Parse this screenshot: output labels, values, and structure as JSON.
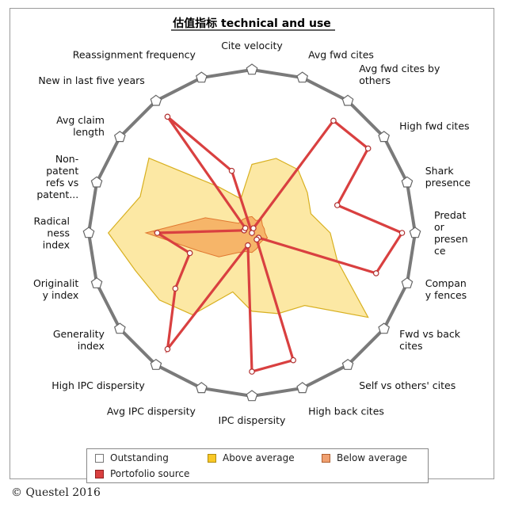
{
  "chart_data": {
    "type": "radar",
    "title": "估值指标 technical and use",
    "max": 100,
    "axes": [
      "Cite velocity",
      "Avg fwd cites",
      "Avg fwd cites by others",
      "High fwd cites",
      "Shark presence",
      "Predator presence",
      "Company fences",
      "Fwd vs back cites",
      "Self vs others' cites",
      "High back cites",
      "IPC dispersity",
      "Avg IPC dispersity",
      "High IPC dispersity",
      "Generality index",
      "Originality index",
      "Radical ness index",
      "Non-patent refs vs patent...",
      "Avg claim length",
      "New in last five years",
      "Reassignment frequency"
    ],
    "axis_label_lines": [
      [
        "Cite velocity"
      ],
      [
        "Avg fwd cites"
      ],
      [
        "Avg fwd cites by",
        "others"
      ],
      [
        "High fwd cites"
      ],
      [
        "Shark",
        "presence"
      ],
      [
        "Predat",
        "or",
        "presen",
        "ce"
      ],
      [
        "Compan",
        "y fences"
      ],
      [
        "Fwd vs back",
        "cites"
      ],
      [
        "Self vs others' cites"
      ],
      [
        "High back cites"
      ],
      [
        "IPC dispersity"
      ],
      [
        "Avg IPC dispersity"
      ],
      [
        "High IPC dispersity"
      ],
      [
        "Generality",
        "index"
      ],
      [
        "Originalit",
        "y index"
      ],
      [
        "Radical",
        "ness",
        "index"
      ],
      [
        "Non-",
        "patent",
        "refs vs",
        "patent..."
      ],
      [
        "Avg claim",
        "length"
      ],
      [
        "New in last five years"
      ],
      [
        "Reassignment frequency"
      ]
    ],
    "series": [
      {
        "name": "Outstanding",
        "color": "#ffffff",
        "values": [
          100,
          100,
          100,
          100,
          100,
          100,
          100,
          100,
          100,
          100,
          100,
          100,
          100,
          100,
          100,
          100,
          100,
          100,
          100,
          100
        ]
      },
      {
        "name": "Above average",
        "color": "#f9c826",
        "values": [
          42,
          48,
          48,
          42,
          38,
          48,
          55,
          88,
          55,
          52,
          48,
          38,
          62,
          70,
          75,
          88,
          72,
          78,
          35,
          22
        ]
      },
      {
        "name": "Below average",
        "color": "#f08a38",
        "values": [
          10,
          8,
          10,
          8,
          8,
          8,
          10,
          8,
          8,
          10,
          12,
          12,
          15,
          25,
          35,
          65,
          30,
          10,
          10,
          10
        ]
      },
      {
        "name": "Portofolio source",
        "color": "#d94040",
        "values": [
          0,
          3,
          85,
          88,
          55,
          92,
          80,
          5,
          5,
          82,
          85,
          8,
          88,
          58,
          40,
          58,
          5,
          5,
          88,
          40
        ]
      }
    ]
  },
  "legend": {
    "outstanding": "Outstanding",
    "above": "Above average",
    "below": "Below average",
    "source": "Portofolio source"
  },
  "footer": {
    "copyright": "© Questel 2016"
  }
}
